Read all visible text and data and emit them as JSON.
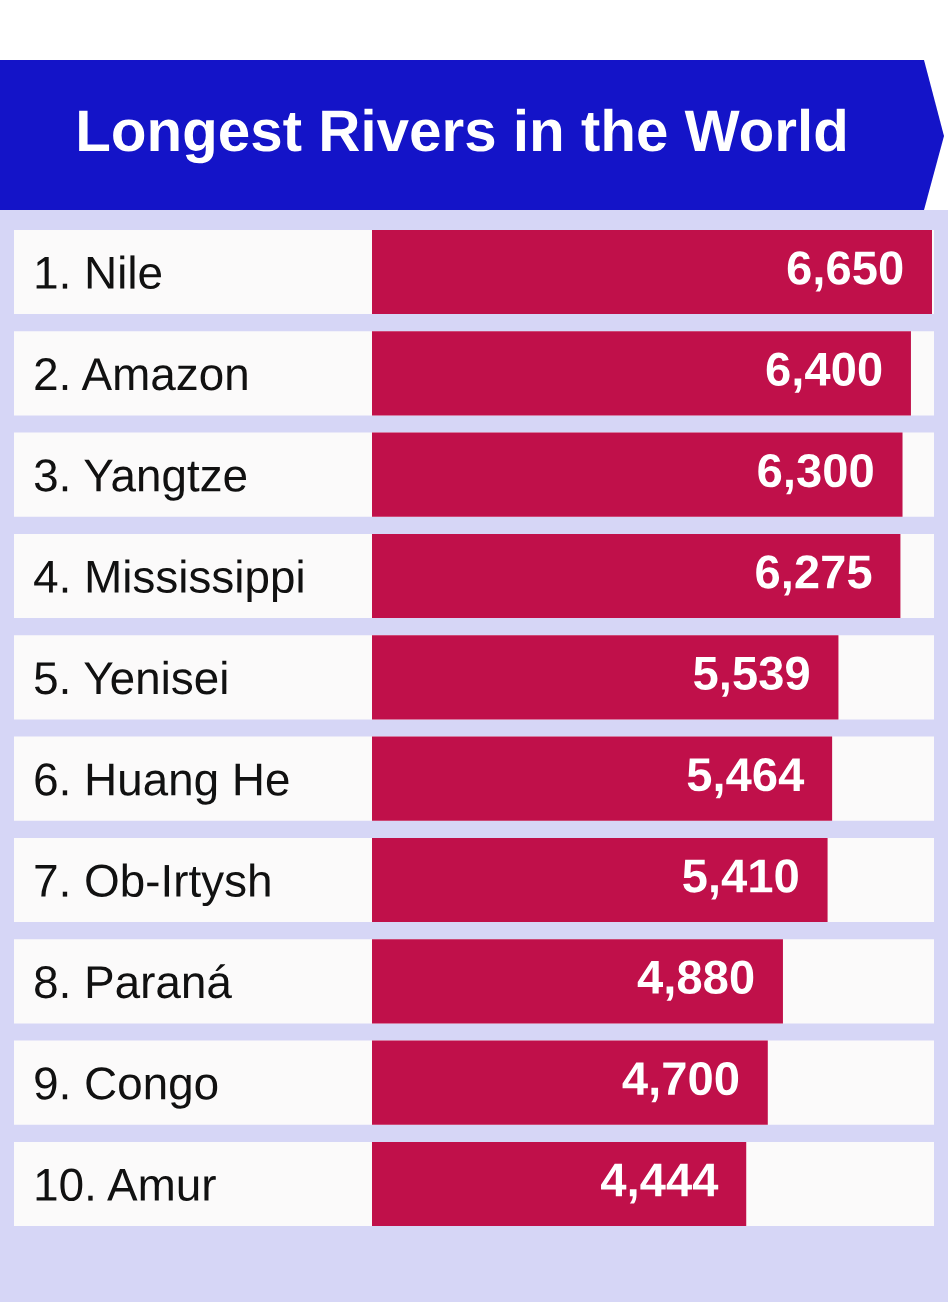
{
  "chart_data": {
    "type": "bar",
    "orientation": "horizontal",
    "title": "Longest Rivers in the World",
    "categories": [
      "1. Nile",
      "2. Amazon",
      "3. Yangtze",
      "4. Mississippi",
      "5. Yenisei",
      "6. Huang He",
      "7. Ob-Irtysh",
      "8. Paraná",
      "9. Congo",
      "10. Amur"
    ],
    "values": [
      6650,
      6400,
      6300,
      6275,
      5539,
      5464,
      5410,
      4880,
      4700,
      4444
    ],
    "value_labels": [
      "6,650",
      "6,400",
      "6,300",
      "6,275",
      "5,539",
      "5,464",
      "5,410",
      "4,880",
      "4,700",
      "4,444"
    ],
    "color": "#c0104a",
    "tick_labels": "y"
  }
}
